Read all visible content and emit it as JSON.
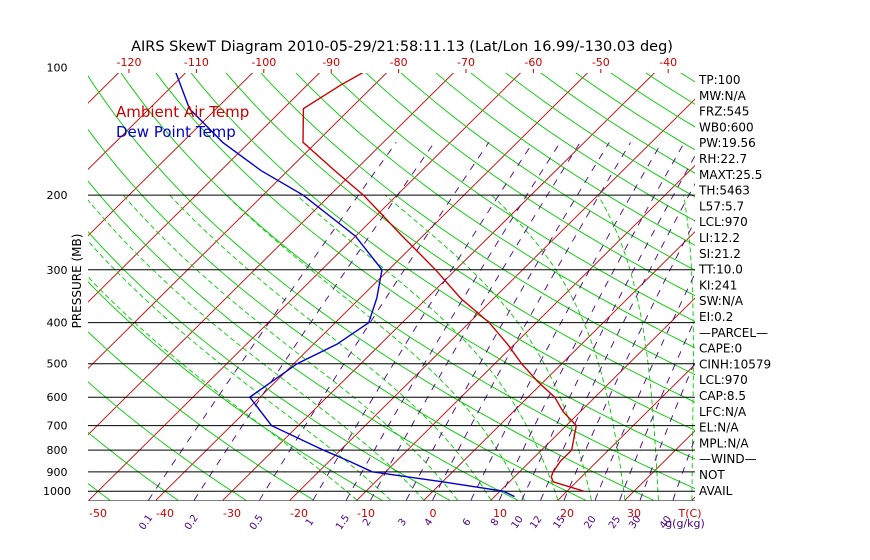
{
  "chart_data": {
    "type": "line",
    "title": "AIRS SkewT Diagram 2010-05-29/21:58:11.13 (Lat/Lon 16.99/-130.03 deg)",
    "ylabel": "PRESSURE (MB)",
    "y_scale": "log",
    "ylim": [
      1050,
      100
    ],
    "top_tick_labels": [
      "-120",
      "-110",
      "-100",
      "-90",
      "-80",
      "-70",
      "-60",
      "-50",
      "-40"
    ],
    "bottom_tick_labels": [
      "-50",
      "-40",
      "-30",
      "-20",
      "-10",
      "0",
      "10",
      "20",
      "30"
    ],
    "bottom_axis_unit": "T(C)",
    "mixing_ratio_labels": [
      "0.1",
      "0.2",
      "0.5",
      "1",
      "1.5",
      "2",
      "3",
      "4",
      "6",
      "8",
      "10",
      "12",
      "15",
      "20",
      "25",
      "30",
      "40"
    ],
    "mixing_ratio_unit": "g(g/kg)",
    "pressure_tick_labels": [
      "100",
      "200",
      "300",
      "400",
      "500",
      "600",
      "700",
      "800",
      "900",
      "1000"
    ],
    "legend": [
      "Ambient Air Temp",
      "Dew Point Temp"
    ],
    "legend_placement": "top-left",
    "colors": {
      "air_temp": "#cc0000",
      "dew_point": "#0000cc",
      "isotherm": "#cc0000",
      "dry_adiabat": "#00cc00",
      "moist_adiabat": "#00cc00",
      "mixing_ratio": "#4b0082",
      "isobar": "#000000",
      "tick_label": "#cc0000",
      "mixing_label": "#4b0082"
    },
    "series": [
      {
        "name": "Ambient Air Temp",
        "points": [
          {
            "p": 1000,
            "t": 22.5
          },
          {
            "p": 950,
            "t": 16.5
          },
          {
            "p": 925,
            "t": 15.5
          },
          {
            "p": 900,
            "t": 15.0
          },
          {
            "p": 850,
            "t": 14.5
          },
          {
            "p": 800,
            "t": 14.5
          },
          {
            "p": 700,
            "t": 11.5
          },
          {
            "p": 650,
            "t": 7.5
          },
          {
            "p": 600,
            "t": 4.0
          },
          {
            "p": 550,
            "t": -1.0
          },
          {
            "p": 500,
            "t": -6.0
          },
          {
            "p": 450,
            "t": -11.0
          },
          {
            "p": 400,
            "t": -17.0
          },
          {
            "p": 350,
            "t": -25.0
          },
          {
            "p": 300,
            "t": -33.0
          },
          {
            "p": 250,
            "t": -43.0
          },
          {
            "p": 200,
            "t": -55.0
          },
          {
            "p": 175,
            "t": -63.0
          },
          {
            "p": 150,
            "t": -72.0
          },
          {
            "p": 125,
            "t": -77.0
          },
          {
            "p": 110,
            "t": -75.0
          },
          {
            "p": 100,
            "t": -73.0
          }
        ]
      },
      {
        "name": "Dew Point Temp",
        "points": [
          {
            "p": 1030,
            "t": 13.0
          },
          {
            "p": 1000,
            "t": 10.5
          },
          {
            "p": 950,
            "t": 0.0
          },
          {
            "p": 900,
            "t": -12.0
          },
          {
            "p": 850,
            "t": -17.0
          },
          {
            "p": 800,
            "t": -22.5
          },
          {
            "p": 700,
            "t": -34.0
          },
          {
            "p": 600,
            "t": -41.5
          },
          {
            "p": 500,
            "t": -39.5
          },
          {
            "p": 450,
            "t": -36.5
          },
          {
            "p": 400,
            "t": -35.0
          },
          {
            "p": 350,
            "t": -37.5
          },
          {
            "p": 300,
            "t": -41.0
          },
          {
            "p": 250,
            "t": -50.0
          },
          {
            "p": 200,
            "t": -64.0
          },
          {
            "p": 175,
            "t": -74.0
          },
          {
            "p": 150,
            "t": -84.0
          },
          {
            "p": 125,
            "t": -94.0
          },
          {
            "p": 100,
            "t": -102.5
          }
        ]
      }
    ],
    "indices": [
      "TP:100",
      "MW:N/A",
      "FRZ:545",
      "WB0:600",
      "PW:19.56",
      "RH:22.7",
      "MAXT:25.5",
      "TH:5463",
      "L57:5.7",
      "LCL:970",
      "LI:12.2",
      "SI:21.2",
      "TT:10.0",
      "KI:241",
      "SW:N/A",
      "EI:0.2",
      "—PARCEL—",
      "CAPE:0",
      "CINH:10579",
      "LCL:970",
      "CAP:8.5",
      "LFC:N/A",
      "EL:N/A",
      "MPL:N/A",
      "—WIND—",
      "NOT",
      "AVAIL"
    ]
  }
}
